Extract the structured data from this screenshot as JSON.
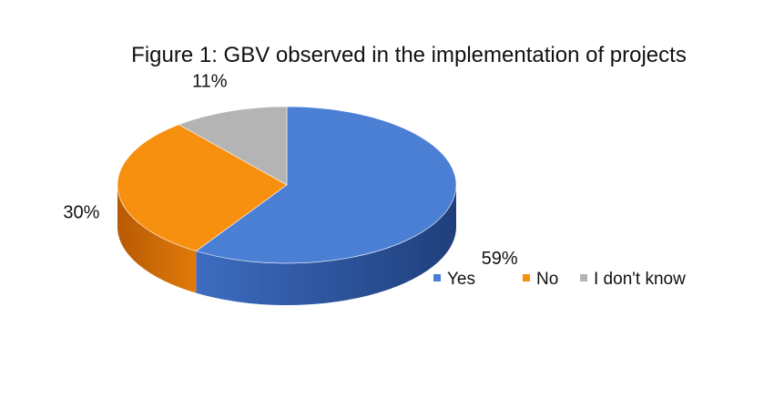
{
  "chart_data": {
    "type": "pie",
    "title": "Figure 1: GBV observed in the implementation of projects",
    "categories": [
      "Yes",
      "No",
      "I don't know"
    ],
    "values": [
      59,
      30,
      11
    ],
    "labels": [
      "59%",
      "30%",
      "11%"
    ],
    "colors": [
      "#4a7fd4",
      "#f7900f",
      "#b4b4b4"
    ],
    "side_colors": [
      "#2a5098",
      "#cc6a06",
      "#8a8a8a"
    ],
    "legend": {
      "position": "bottom-right",
      "entries": [
        "Yes",
        "No",
        "I don't know"
      ]
    },
    "style": "3d-tilted"
  }
}
